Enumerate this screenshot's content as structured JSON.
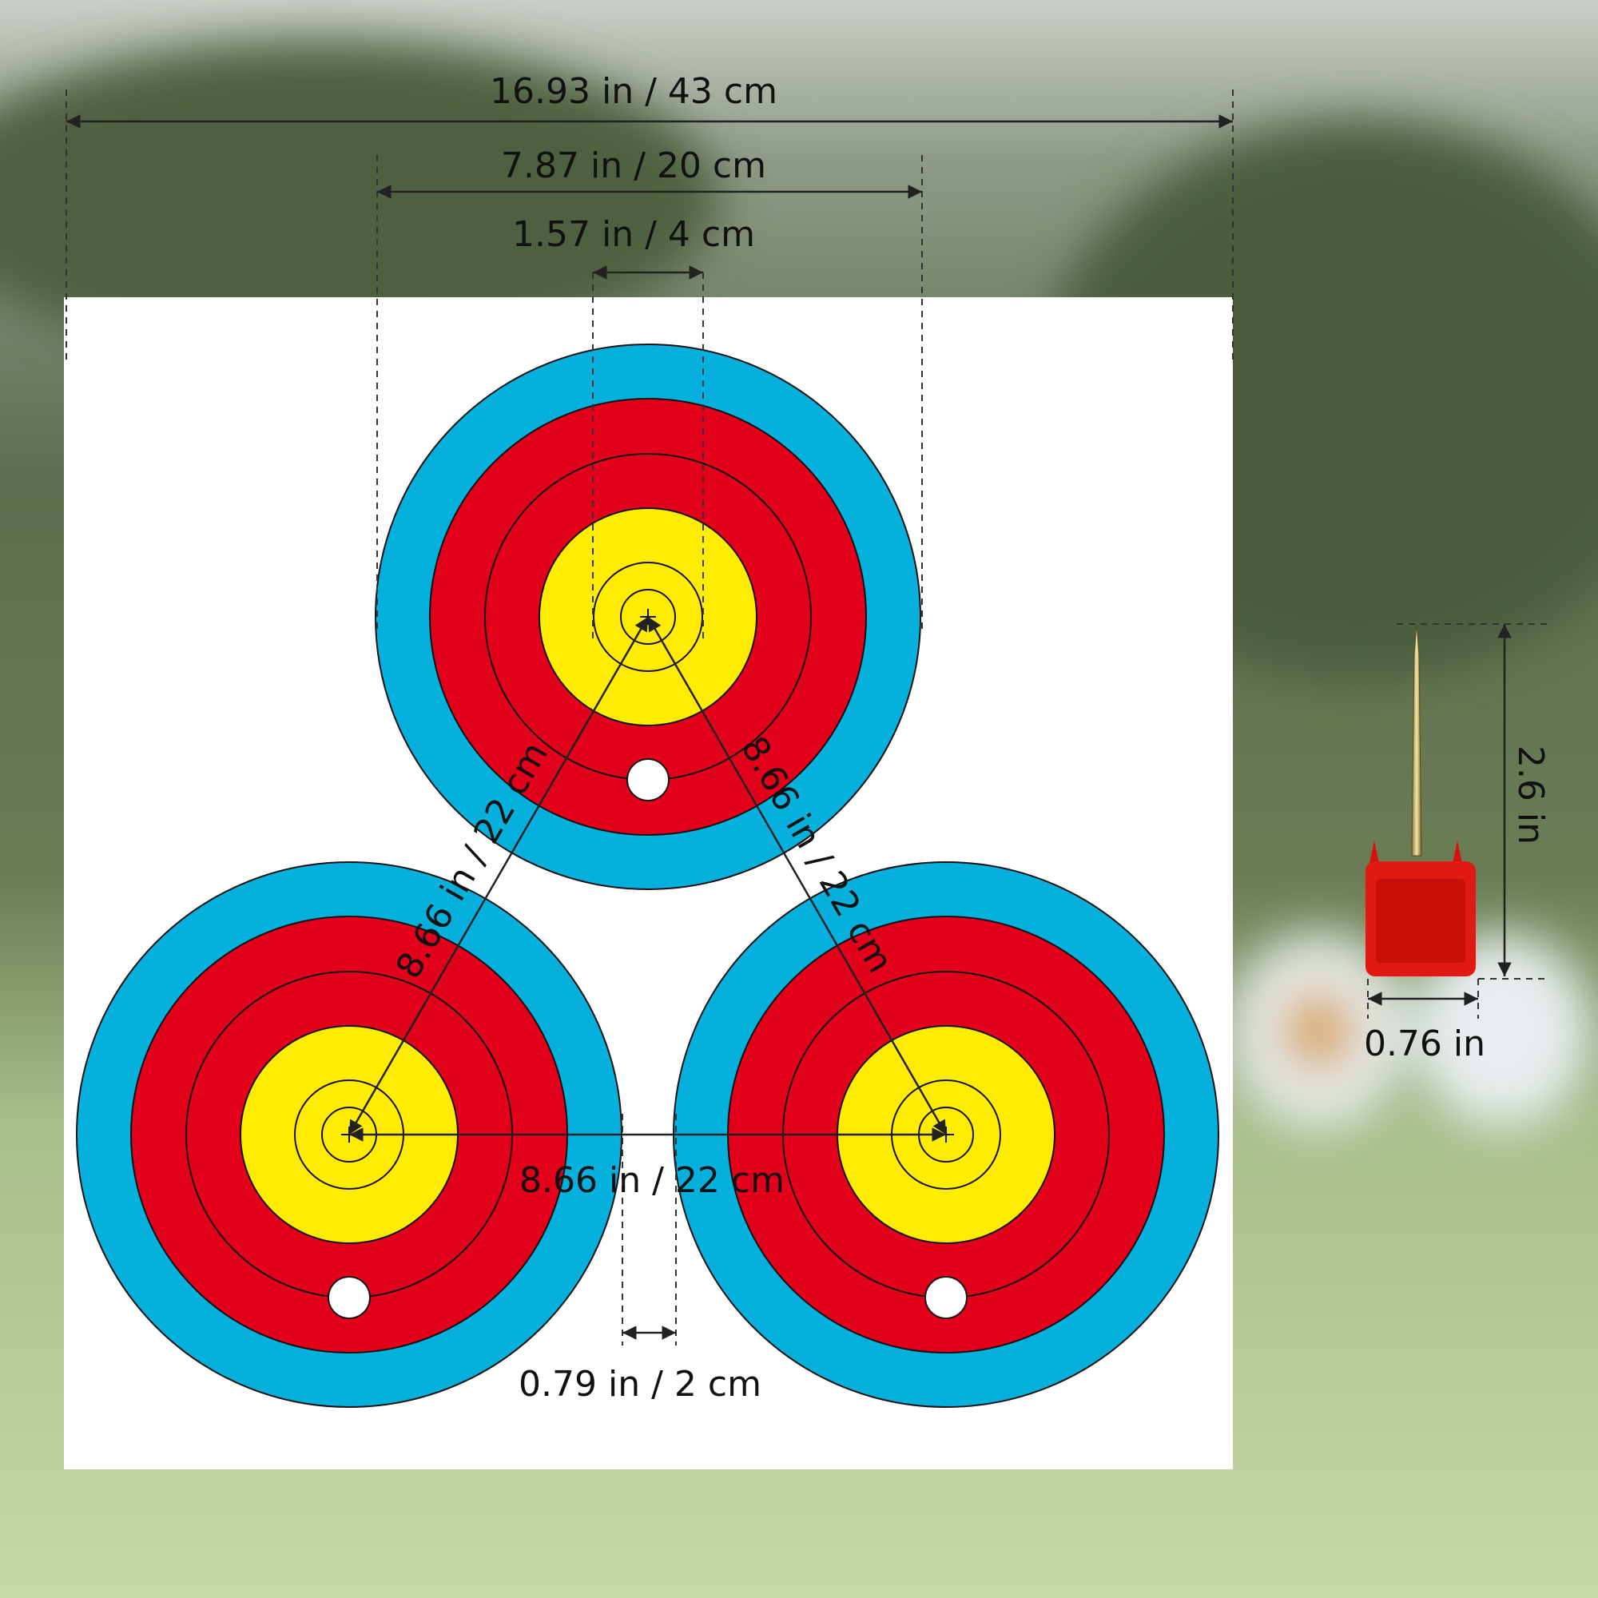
{
  "dimensions": {
    "overall_width": "16.93 in / 43 cm",
    "target_diameter": "7.87 in / 20 cm",
    "center_diameter": "1.57 in / 4 cm",
    "center_distance_left": "8.66 in / 22 cm",
    "center_distance_right": "8.66 in / 22 cm",
    "center_distance_bottom": "8.66 in / 22 cm",
    "gap": "0.79 in / 2 cm",
    "pin_height": "2.6 in",
    "pin_width": "0.76 in"
  }
}
